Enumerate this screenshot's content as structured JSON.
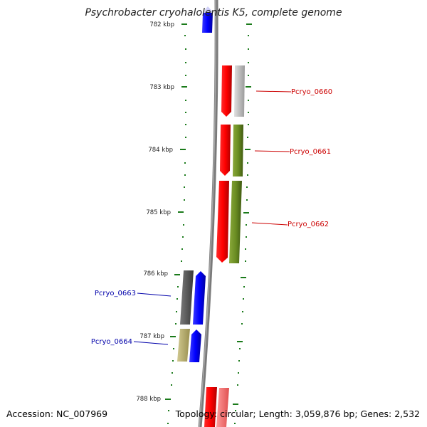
{
  "title": "Psychrobacter cryohalolentis K5, complete genome",
  "accession": "Accession: NC_007969",
  "topology": "Topology: circular; Length: 3,059,876 bp; Genes: 2,532",
  "colors": {
    "backbone": "#808080",
    "tick": "#1a7a1a",
    "forward_label": "#cc0000",
    "reverse_label": "#0000aa"
  },
  "ticks": [
    {
      "label": "782 kbp"
    },
    {
      "label": "783 kbp"
    },
    {
      "label": "784 kbp"
    },
    {
      "label": "785 kbp"
    },
    {
      "label": "786 kbp"
    },
    {
      "label": "787 kbp"
    },
    {
      "label": "788 kbp"
    }
  ],
  "genes": [
    {
      "name": "Pcryo_0660",
      "strand": "forward"
    },
    {
      "name": "Pcryo_0661",
      "strand": "forward"
    },
    {
      "name": "Pcryo_0662",
      "strand": "forward"
    },
    {
      "name": "Pcryo_0663",
      "strand": "reverse"
    },
    {
      "name": "Pcryo_0664",
      "strand": "reverse"
    }
  ]
}
